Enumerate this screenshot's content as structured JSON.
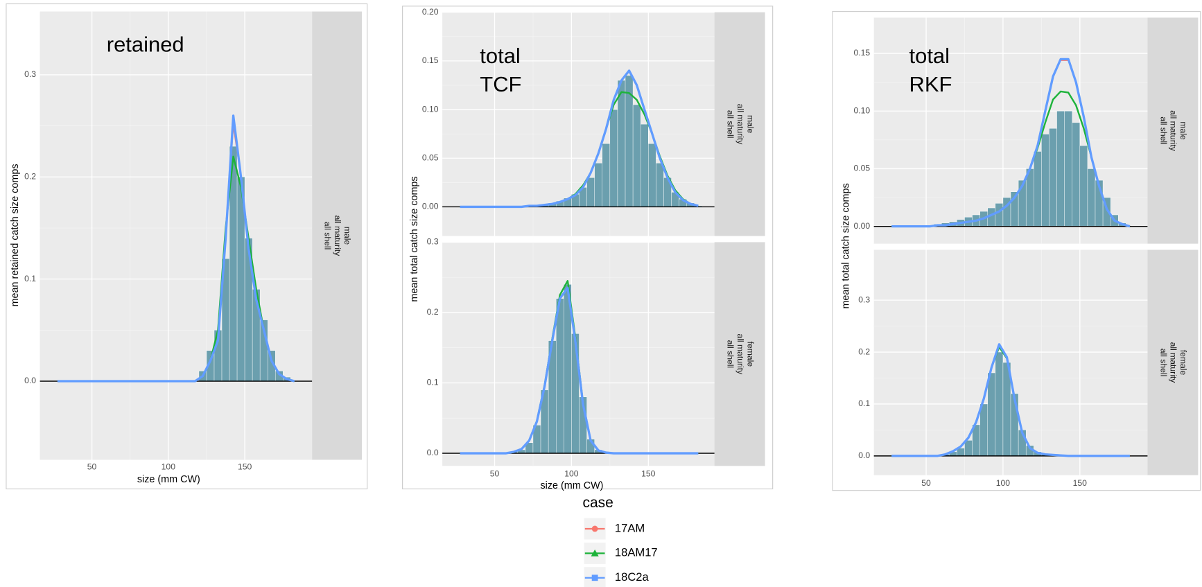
{
  "chart_data": [
    {
      "type": "bar",
      "title": [
        "retained"
      ],
      "facet": [
        "male",
        "all maturity",
        "all shell"
      ],
      "ylabel": "mean retained catch size comps",
      "xlabel": "size (mm CW)",
      "legend_title": "case",
      "bar_color": "#6b9fae",
      "hline": 0,
      "x": [
        27.5,
        32.5,
        37.5,
        42.5,
        47.5,
        52.5,
        57.5,
        62.5,
        67.5,
        72.5,
        77.5,
        82.5,
        87.5,
        92.5,
        97.5,
        102.5,
        107.5,
        112.5,
        117.5,
        122.5,
        127.5,
        132.5,
        137.5,
        142.5,
        147.5,
        152.5,
        157.5,
        162.5,
        167.5,
        172.5,
        177.5,
        182.5
      ],
      "values": [
        0,
        0,
        0,
        0,
        0,
        0,
        0,
        0,
        0,
        0,
        0,
        0,
        0,
        0,
        0,
        0,
        0,
        0,
        0,
        0.01,
        0.03,
        0.05,
        0.12,
        0.23,
        0.2,
        0.14,
        0.09,
        0.06,
        0.03,
        0.01,
        0.004,
        0
      ],
      "series": [
        {
          "name": "17AM",
          "color": "#F8766D",
          "values": [
            0,
            0,
            0,
            0,
            0,
            0,
            0,
            0,
            0,
            0,
            0,
            0,
            0,
            0,
            0,
            0,
            0,
            0,
            0,
            0.005,
            0.02,
            0.04,
            0.14,
            0.25,
            0.2,
            0.13,
            0.08,
            0.05,
            0.02,
            0.007,
            0.002,
            0
          ]
        },
        {
          "name": "18AM17",
          "color": "#1DB33A",
          "values": [
            0,
            0,
            0,
            0,
            0,
            0,
            0,
            0,
            0,
            0,
            0,
            0,
            0,
            0,
            0,
            0,
            0,
            0,
            0,
            0.005,
            0.02,
            0.05,
            0.15,
            0.22,
            0.19,
            0.14,
            0.09,
            0.05,
            0.02,
            0.007,
            0.002,
            0
          ]
        },
        {
          "name": "18C2a",
          "color": "#619CFF",
          "values": [
            0,
            0,
            0,
            0,
            0,
            0,
            0,
            0,
            0,
            0,
            0,
            0,
            0,
            0,
            0,
            0,
            0,
            0,
            0,
            0.005,
            0.02,
            0.04,
            0.14,
            0.26,
            0.2,
            0.13,
            0.08,
            0.05,
            0.02,
            0.007,
            0.002,
            0
          ]
        }
      ],
      "xlim": [
        16,
        194
      ],
      "xticks": [
        50,
        100,
        150
      ],
      "ylim": [
        -0.077,
        0.362
      ],
      "yticks": [
        {
          "value": 0,
          "label": "0.0"
        },
        0.1,
        0.2,
        0.3
      ],
      "grid": true
    },
    {
      "type": "bar",
      "title": [
        "total",
        "TCF"
      ],
      "facet": [
        "male",
        "all maturity",
        "all shell"
      ],
      "ylabel": "mean total catch size comps",
      "bar_color": "#6b9fae",
      "hline": 0,
      "x": [
        27.5,
        32.5,
        37.5,
        42.5,
        47.5,
        52.5,
        57.5,
        62.5,
        67.5,
        72.5,
        77.5,
        82.5,
        87.5,
        92.5,
        97.5,
        102.5,
        107.5,
        112.5,
        117.5,
        122.5,
        127.5,
        132.5,
        137.5,
        142.5,
        147.5,
        152.5,
        157.5,
        162.5,
        167.5,
        172.5,
        177.5,
        182.5
      ],
      "values": [
        0,
        0,
        0,
        0,
        0,
        0,
        0,
        0,
        0,
        0.001,
        0.002,
        0.003,
        0.004,
        0.006,
        0.009,
        0.013,
        0.02,
        0.03,
        0.045,
        0.065,
        0.1,
        0.13,
        0.135,
        0.105,
        0.085,
        0.065,
        0.045,
        0.03,
        0.015,
        0.008,
        0.004,
        0.001
      ],
      "series": [
        {
          "color": "#F8766D",
          "values": [
            0,
            0,
            0,
            0,
            0,
            0,
            0,
            0,
            0,
            0.001,
            0.001,
            0.002,
            0.003,
            0.005,
            0.008,
            0.012,
            0.02,
            0.034,
            0.054,
            0.08,
            0.11,
            0.13,
            0.139,
            0.124,
            0.1,
            0.075,
            0.05,
            0.03,
            0.015,
            0.007,
            0.003,
            0.001
          ]
        },
        {
          "color": "#1DB33A",
          "values": [
            0,
            0,
            0,
            0,
            0,
            0,
            0,
            0,
            0,
            0.001,
            0.001,
            0.002,
            0.003,
            0.005,
            0.008,
            0.013,
            0.022,
            0.035,
            0.055,
            0.08,
            0.105,
            0.118,
            0.117,
            0.11,
            0.095,
            0.075,
            0.052,
            0.032,
            0.017,
            0.008,
            0.003,
            0.001
          ]
        },
        {
          "color": "#619CFF",
          "values": [
            0,
            0,
            0,
            0,
            0,
            0,
            0,
            0,
            0,
            0.001,
            0.001,
            0.002,
            0.003,
            0.005,
            0.008,
            0.012,
            0.02,
            0.035,
            0.055,
            0.08,
            0.11,
            0.13,
            0.14,
            0.125,
            0.1,
            0.075,
            0.05,
            0.03,
            0.015,
            0.007,
            0.003,
            0.001
          ]
        }
      ],
      "xlim": [
        16,
        193
      ],
      "xticks": [
        50,
        100,
        150
      ],
      "ylim": [
        -0.03,
        0.2
      ],
      "yticks": [
        {
          "value": 0,
          "label": "0.00"
        },
        0.05,
        {
          "value": 0.1,
          "label": "0.10"
        },
        0.15,
        {
          "value": 0.2,
          "label": "0.20"
        }
      ],
      "grid": true
    },
    {
      "type": "bar",
      "facet": [
        "female",
        "all maturity",
        "all shell"
      ],
      "xlabel": "size (mm CW)",
      "bar_color": "#6b9fae",
      "hline": 0,
      "x": [
        27.5,
        32.5,
        37.5,
        42.5,
        47.5,
        52.5,
        57.5,
        62.5,
        67.5,
        72.5,
        77.5,
        82.5,
        87.5,
        92.5,
        97.5,
        102.5,
        107.5,
        112.5,
        117.5,
        122.5,
        127.5,
        132.5,
        137.5,
        142.5,
        147.5,
        152.5,
        157.5,
        162.5,
        167.5,
        172.5,
        177.5,
        182.5
      ],
      "values": [
        0,
        0,
        0,
        0,
        0,
        0,
        0,
        0.002,
        0.005,
        0.015,
        0.04,
        0.09,
        0.16,
        0.22,
        0.24,
        0.17,
        0.08,
        0.02,
        0.005,
        0.001,
        0,
        0,
        0,
        0,
        0,
        0,
        0,
        0,
        0,
        0,
        0,
        0
      ],
      "series": [
        {
          "color": "#F8766D",
          "values": [
            0,
            0,
            0,
            0,
            0,
            0,
            0,
            0.002,
            0.006,
            0.018,
            0.045,
            0.095,
            0.16,
            0.22,
            0.235,
            0.16,
            0.07,
            0.018,
            0.004,
            0.001,
            0,
            0,
            0,
            0,
            0,
            0,
            0,
            0,
            0,
            0,
            0,
            0
          ]
        },
        {
          "color": "#1DB33A",
          "values": [
            0,
            0,
            0,
            0,
            0,
            0,
            0,
            0.002,
            0.006,
            0.018,
            0.046,
            0.097,
            0.163,
            0.225,
            0.245,
            0.165,
            0.072,
            0.018,
            0.004,
            0.001,
            0,
            0,
            0,
            0,
            0,
            0,
            0,
            0,
            0,
            0,
            0,
            0
          ]
        },
        {
          "color": "#619CFF",
          "values": [
            0,
            0,
            0,
            0,
            0,
            0,
            0,
            0.002,
            0.006,
            0.018,
            0.045,
            0.095,
            0.16,
            0.22,
            0.235,
            0.16,
            0.07,
            0.018,
            0.004,
            0.001,
            0,
            0,
            0,
            0,
            0,
            0,
            0,
            0,
            0,
            0,
            0,
            0
          ]
        }
      ],
      "xlim": [
        16,
        193
      ],
      "xticks": [
        50,
        100,
        150
      ],
      "ylim": [
        -0.018,
        0.3
      ],
      "yticks": [
        {
          "value": 0,
          "label": "0.0"
        },
        0.1,
        0.2,
        0.3
      ],
      "grid": true
    },
    {
      "type": "bar",
      "title": [
        "total",
        "RKF"
      ],
      "facet": [
        "male",
        "all maturity",
        "all shell"
      ],
      "ylabel": "mean total catch size comps",
      "bar_color": "#6b9fae",
      "hline": 0,
      "x": [
        27.5,
        32.5,
        37.5,
        42.5,
        47.5,
        52.5,
        57.5,
        62.5,
        67.5,
        72.5,
        77.5,
        82.5,
        87.5,
        92.5,
        97.5,
        102.5,
        107.5,
        112.5,
        117.5,
        122.5,
        127.5,
        132.5,
        137.5,
        142.5,
        147.5,
        152.5,
        157.5,
        162.5,
        167.5,
        172.5,
        177.5,
        182.5
      ],
      "values": [
        0,
        0,
        0,
        0,
        0,
        0,
        0.002,
        0.003,
        0.004,
        0.006,
        0.008,
        0.01,
        0.013,
        0.016,
        0.02,
        0.025,
        0.03,
        0.04,
        0.05,
        0.065,
        0.08,
        0.085,
        0.1,
        0.1,
        0.09,
        0.07,
        0.05,
        0.04,
        0.025,
        0.01,
        0.003,
        0
      ],
      "series": [
        {
          "color": "#F8766D",
          "values": [
            0,
            0,
            0,
            0,
            0,
            0,
            0.001,
            0.001,
            0.002,
            0.003,
            0.004,
            0.005,
            0.007,
            0.01,
            0.013,
            0.018,
            0.025,
            0.035,
            0.05,
            0.07,
            0.1,
            0.13,
            0.144,
            0.144,
            0.125,
            0.095,
            0.06,
            0.035,
            0.015,
            0.005,
            0.002,
            0
          ]
        },
        {
          "color": "#1DB33A",
          "values": [
            0,
            0,
            0,
            0,
            0,
            0,
            0.001,
            0.001,
            0.002,
            0.003,
            0.004,
            0.005,
            0.007,
            0.01,
            0.013,
            0.018,
            0.025,
            0.035,
            0.05,
            0.068,
            0.09,
            0.11,
            0.117,
            0.116,
            0.105,
            0.085,
            0.06,
            0.035,
            0.015,
            0.005,
            0.002,
            0
          ]
        },
        {
          "color": "#619CFF",
          "values": [
            0,
            0,
            0,
            0,
            0,
            0,
            0.001,
            0.001,
            0.002,
            0.003,
            0.004,
            0.005,
            0.007,
            0.01,
            0.013,
            0.018,
            0.025,
            0.035,
            0.05,
            0.07,
            0.1,
            0.13,
            0.145,
            0.145,
            0.125,
            0.095,
            0.06,
            0.035,
            0.015,
            0.005,
            0.002,
            0
          ]
        }
      ],
      "xlim": [
        16,
        194
      ],
      "xticks": [
        50,
        100,
        150
      ],
      "ylim": [
        -0.015,
        0.181
      ],
      "yticks": [
        {
          "value": 0,
          "label": "0.00"
        },
        0.05,
        {
          "value": 0.1,
          "label": "0.10"
        },
        0.15
      ],
      "grid": true
    },
    {
      "type": "bar",
      "facet": [
        "female",
        "all maturity",
        "all shell"
      ],
      "bar_color": "#6b9fae",
      "hline": 0,
      "x": [
        27.5,
        32.5,
        37.5,
        42.5,
        47.5,
        52.5,
        57.5,
        62.5,
        67.5,
        72.5,
        77.5,
        82.5,
        87.5,
        92.5,
        97.5,
        102.5,
        107.5,
        112.5,
        117.5,
        122.5,
        127.5,
        132.5,
        137.5,
        142.5,
        147.5,
        152.5,
        157.5,
        162.5,
        167.5,
        172.5,
        177.5,
        182.5
      ],
      "values": [
        0,
        0,
        0,
        0,
        0,
        0,
        0,
        0.003,
        0.008,
        0.015,
        0.03,
        0.06,
        0.1,
        0.16,
        0.2,
        0.18,
        0.12,
        0.05,
        0.02,
        0.008,
        0.004,
        0.002,
        0.001,
        0,
        0,
        0,
        0,
        0,
        0,
        0,
        0,
        0
      ],
      "series": [
        {
          "color": "#F8766D",
          "values": [
            0,
            0,
            0,
            0,
            0,
            0,
            0,
            0.003,
            0.009,
            0.018,
            0.035,
            0.065,
            0.11,
            0.17,
            0.215,
            0.19,
            0.11,
            0.045,
            0.015,
            0.006,
            0.003,
            0.002,
            0.001,
            0,
            0,
            0,
            0,
            0,
            0,
            0,
            0,
            0
          ]
        },
        {
          "color": "#1DB33A",
          "values": [
            0,
            0,
            0,
            0,
            0,
            0,
            0,
            0.003,
            0.009,
            0.018,
            0.035,
            0.066,
            0.11,
            0.17,
            0.21,
            0.188,
            0.11,
            0.045,
            0.015,
            0.006,
            0.003,
            0.002,
            0.001,
            0,
            0,
            0,
            0,
            0,
            0,
            0,
            0,
            0
          ]
        },
        {
          "color": "#619CFF",
          "values": [
            0,
            0,
            0,
            0,
            0,
            0,
            0,
            0.003,
            0.009,
            0.018,
            0.035,
            0.065,
            0.11,
            0.17,
            0.215,
            0.19,
            0.11,
            0.045,
            0.015,
            0.006,
            0.003,
            0.002,
            0.001,
            0,
            0,
            0,
            0,
            0,
            0,
            0,
            0,
            0
          ]
        }
      ],
      "xlim": [
        16,
        194
      ],
      "xticks": [
        50,
        100,
        150
      ],
      "ylim": [
        -0.037,
        0.397
      ],
      "yticks": [
        {
          "value": 0,
          "label": "0.0"
        },
        0.1,
        0.2,
        0.3
      ],
      "grid": true
    }
  ]
}
